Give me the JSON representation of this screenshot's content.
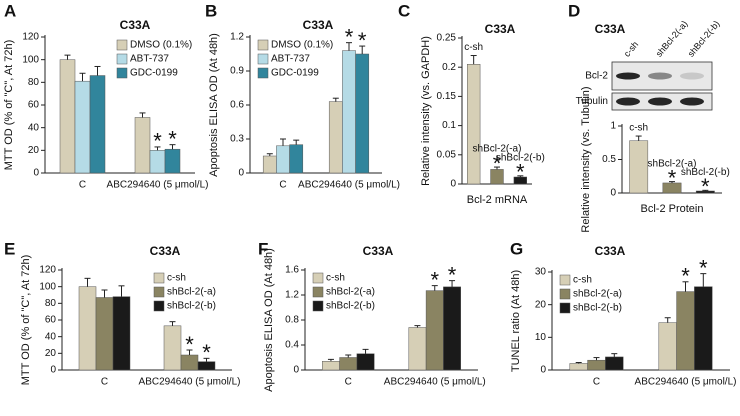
{
  "chart_data": [
    {
      "type": "bar",
      "panel": "A",
      "title": "C33A",
      "ylabel": "MTT OD (% of \"C\", At 72h)",
      "categories": [
        "C",
        "ABC294640 (5 μmol/L)"
      ],
      "series": [
        {
          "name": "DMSO (0.1%)",
          "color": "#d6cfb6",
          "values": [
            100,
            49
          ],
          "errors": [
            4,
            4
          ],
          "significance": [
            null,
            null
          ]
        },
        {
          "name": "ABT-737",
          "color": "#b5dbe6",
          "values": [
            81,
            20
          ],
          "errors": [
            7,
            3
          ],
          "significance": [
            null,
            "*"
          ]
        },
        {
          "name": "GDC-0199",
          "color": "#31859c",
          "values": [
            86,
            21
          ],
          "errors": [
            8,
            4
          ],
          "significance": [
            null,
            "*"
          ]
        }
      ],
      "ylim": [
        0,
        120
      ],
      "yticks": [
        0,
        20,
        40,
        60,
        80,
        100,
        120
      ],
      "legend": "upper right"
    },
    {
      "type": "bar",
      "panel": "B",
      "title": "C33A",
      "ylabel": "Apoptosis ELISA OD (At 48h)",
      "categories": [
        "C",
        "ABC294640 (5 μmol/L)"
      ],
      "series": [
        {
          "name": "DMSO (0.1%)",
          "color": "#d6cfb6",
          "values": [
            0.15,
            0.63
          ],
          "errors": [
            0.02,
            0.03
          ],
          "significance": [
            null,
            null
          ]
        },
        {
          "name": "ABT-737",
          "color": "#b5dbe6",
          "values": [
            0.24,
            1.08
          ],
          "errors": [
            0.06,
            0.07
          ],
          "significance": [
            null,
            "*"
          ]
        },
        {
          "name": "GDC-0199",
          "color": "#31859c",
          "values": [
            0.25,
            1.05
          ],
          "errors": [
            0.04,
            0.07
          ],
          "significance": [
            null,
            "*"
          ]
        }
      ],
      "ylim": [
        0,
        1.2
      ],
      "yticks": [
        0,
        0.3,
        0.6,
        0.9,
        1.2
      ],
      "legend": "upper left"
    },
    {
      "type": "bar",
      "panel": "C",
      "title": "C33A",
      "ylabel": "Relative intensity (vs. GAPDH)",
      "xlabel": "Bcl-2 mRNA",
      "categories": [
        "c-sh",
        "shBcl-2(-a)",
        "shBcl-2(-b)"
      ],
      "values": [
        0.205,
        0.025,
        0.012
      ],
      "errors": [
        0.015,
        0.004,
        0.002
      ],
      "colors": [
        "#d6cfb6",
        "#8a8462",
        "#1a1a1a"
      ],
      "significance": [
        null,
        "*",
        "*"
      ],
      "ylim": [
        0,
        0.25
      ],
      "yticks": [
        0,
        0.05,
        0.1,
        0.15,
        0.2,
        0.25
      ]
    },
    {
      "type": "bar",
      "panel": "D",
      "title": "C33A",
      "ylabel": "Relative intensity (vs. Tubulin)",
      "xlabel": "Bcl-2 Protein",
      "blot": {
        "lanes": [
          "c-sh",
          "shBcl-2(-a)",
          "shBcl-2(-b)"
        ],
        "rows": [
          "Bcl-2",
          "Tubulin"
        ]
      },
      "categories": [
        "c-sh",
        "shBcl-2(-a)",
        "shBcl-2(-b)"
      ],
      "values": [
        0.78,
        0.15,
        0.03
      ],
      "errors": [
        0.07,
        0.02,
        0.01
      ],
      "colors": [
        "#d6cfb6",
        "#8a8462",
        "#1a1a1a"
      ],
      "significance": [
        null,
        "*",
        "*"
      ],
      "ylim": [
        0,
        1
      ],
      "yticks": [
        0,
        0.5,
        1
      ]
    },
    {
      "type": "bar",
      "panel": "E",
      "title": "C33A",
      "ylabel": "MTT OD (% of \"C\", At 72h)",
      "categories": [
        "C",
        "ABC294640 (5 μmol/L)"
      ],
      "series": [
        {
          "name": "c-sh",
          "color": "#d6cfb6",
          "values": [
            100,
            53
          ],
          "errors": [
            10,
            5
          ],
          "significance": [
            null,
            null
          ]
        },
        {
          "name": "shBcl-2(-a)",
          "color": "#8a8462",
          "values": [
            87,
            18
          ],
          "errors": [
            9,
            6
          ],
          "significance": [
            null,
            "*"
          ]
        },
        {
          "name": "shBcl-2(-b)",
          "color": "#1a1a1a",
          "values": [
            88,
            10
          ],
          "errors": [
            13,
            4
          ],
          "significance": [
            null,
            "*"
          ]
        }
      ],
      "ylim": [
        0,
        120
      ],
      "yticks": [
        0,
        20,
        40,
        60,
        80,
        100,
        120
      ],
      "legend": "upper right"
    },
    {
      "type": "bar",
      "panel": "F",
      "title": "C33A",
      "ylabel": "Apoptosis ELISA OD (At 48h)",
      "categories": [
        "C",
        "ABC294640 (5 μmol/L)"
      ],
      "series": [
        {
          "name": "c-sh",
          "color": "#d6cfb6",
          "values": [
            0.14,
            0.68
          ],
          "errors": [
            0.03,
            0.03
          ],
          "significance": [
            null,
            null
          ]
        },
        {
          "name": "shBcl-2(-a)",
          "color": "#8a8462",
          "values": [
            0.2,
            1.27
          ],
          "errors": [
            0.04,
            0.08
          ],
          "significance": [
            null,
            "*"
          ]
        },
        {
          "name": "shBcl-2(-b)",
          "color": "#1a1a1a",
          "values": [
            0.26,
            1.33
          ],
          "errors": [
            0.07,
            0.1
          ],
          "significance": [
            null,
            "*"
          ]
        }
      ],
      "ylim": [
        0,
        1.6
      ],
      "yticks": [
        0,
        0.4,
        0.8,
        1.2,
        1.6
      ],
      "legend": "upper left"
    },
    {
      "type": "bar",
      "panel": "G",
      "title": "C33A",
      "ylabel": "TUNEL ratio (At 48h)",
      "categories": [
        "C",
        "ABC294640 (5 μmol/L)"
      ],
      "series": [
        {
          "name": "c-sh",
          "color": "#d6cfb6",
          "values": [
            2,
            14.5
          ],
          "errors": [
            0.3,
            1.5
          ],
          "significance": [
            null,
            null
          ]
        },
        {
          "name": "shBcl-2(-a)",
          "color": "#8a8462",
          "values": [
            3,
            24
          ],
          "errors": [
            0.8,
            3
          ],
          "significance": [
            null,
            "*"
          ]
        },
        {
          "name": "shBcl-2(-b)",
          "color": "#1a1a1a",
          "values": [
            4,
            25.5
          ],
          "errors": [
            1,
            4
          ],
          "significance": [
            null,
            "*"
          ]
        }
      ],
      "ylim": [
        0,
        30
      ],
      "yticks": [
        0,
        10,
        20,
        30
      ],
      "legend": "upper left"
    }
  ]
}
